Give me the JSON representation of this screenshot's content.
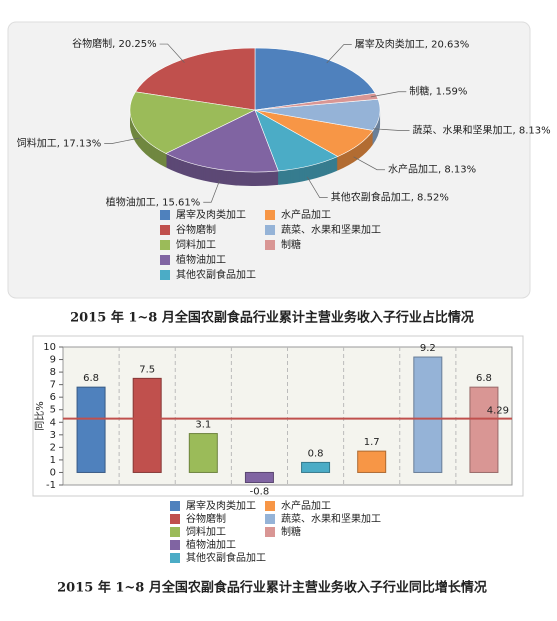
{
  "chart_data": [
    {
      "type": "pie",
      "title": "2015 年 1~8 月全国农副食品行业累计主营业务收入子行业占比情况",
      "categories": [
        "屠宰及肉类加工",
        "谷物磨制",
        "饲料加工",
        "植物油加工",
        "其他农副食品加工",
        "水产品加工",
        "蔬菜、水果和坚果加工",
        "制糖"
      ],
      "values": [
        20.63,
        20.25,
        17.13,
        15.61,
        8.52,
        8.13,
        8.13,
        1.59
      ],
      "value_labels": [
        "屠宰及肉类加工, 20.63%",
        "谷物磨制, 20.25%",
        "饲料加工, 17.13%",
        "植物油加工, 15.61%",
        "其他农副食品加工, 8.52%",
        "水产品加工, 8.13%",
        "蔬菜、水果和坚果加工, 8.13%",
        "制糖, 1.59%"
      ],
      "colors": [
        "#4f81bd",
        "#c0504d",
        "#9bbb59",
        "#8064a2",
        "#4bacc6",
        "#f79646",
        "#95b3d7",
        "#d99694"
      ]
    },
    {
      "type": "bar",
      "title": "2015 年 1~8 月全国农副食品行业累计主营业务收入子行业同比增长情况",
      "y_label": "同比%",
      "categories": [
        "屠宰及肉类加工",
        "谷物磨制",
        "饲料加工",
        "植物油加工",
        "其他农副食品加工",
        "水产品加工",
        "蔬菜、水果和坚果加工",
        "制糖"
      ],
      "values": [
        6.8,
        7.5,
        3.1,
        -0.8,
        0.8,
        1.7,
        9.2,
        6.8
      ],
      "colors": [
        "#4f81bd",
        "#c0504d",
        "#9bbb59",
        "#8064a2",
        "#4bacc6",
        "#f79646",
        "#95b3d7",
        "#d99694"
      ],
      "ylim": [
        -1,
        10
      ],
      "yticks": [
        -1,
        0,
        1,
        2,
        3,
        4,
        5,
        6,
        7,
        8,
        9,
        10
      ],
      "reference_line": 4.29,
      "reference_color": "#c0504d",
      "grid": true
    }
  ]
}
